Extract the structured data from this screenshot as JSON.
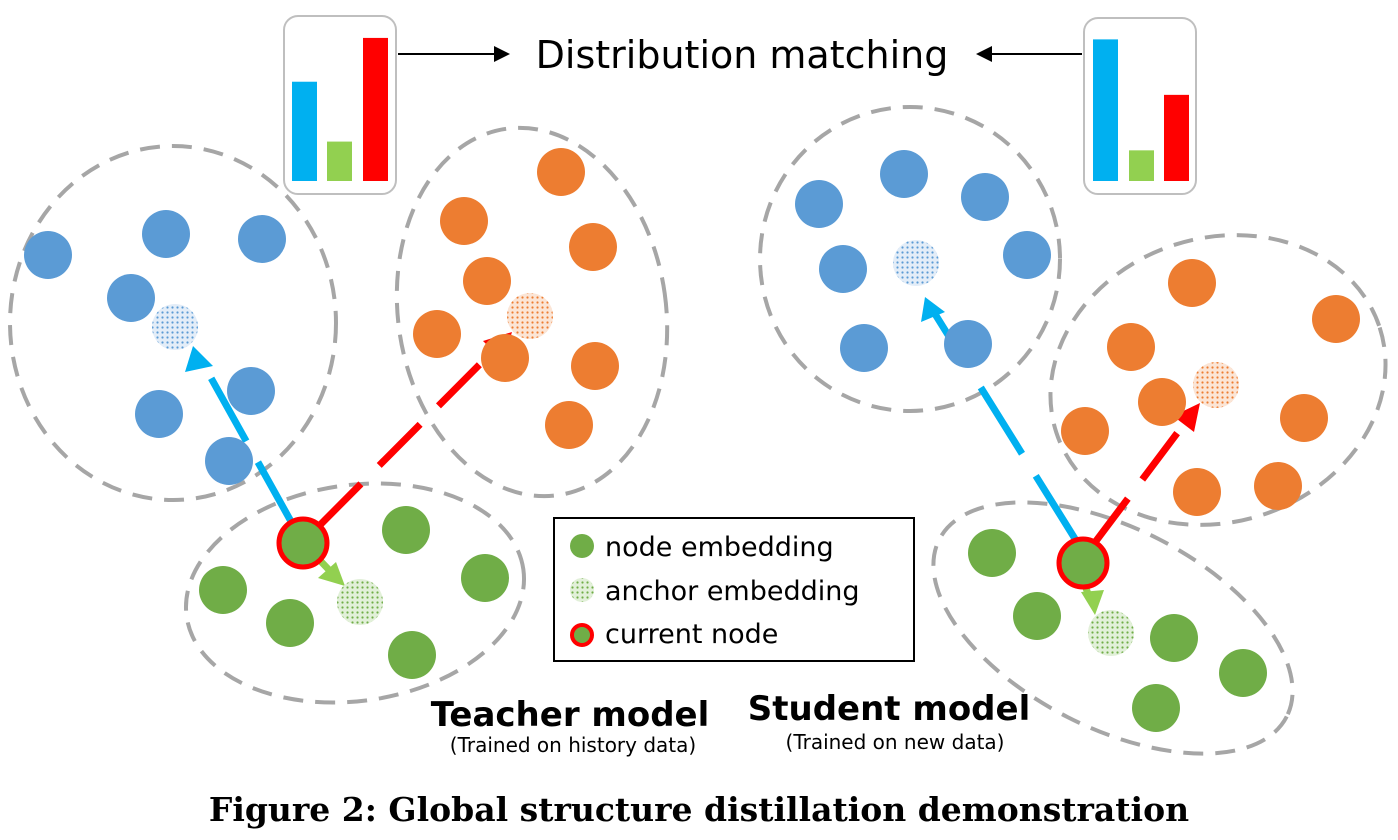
{
  "header": {
    "title": "Distribution matching"
  },
  "legend": {
    "node": "node embedding",
    "anchor": "anchor embedding",
    "current": "current node"
  },
  "teacher": {
    "title": "Teacher model",
    "subtitle": "(Trained on history data)"
  },
  "student": {
    "title": "Student model",
    "subtitle": "(Trained on new data)"
  },
  "caption": "Figure 2: Global structure distillation demonstration",
  "colors": {
    "blue": "#5b9bd5",
    "orange": "#ed7d31",
    "green": "#70ad47",
    "bar_blue": "#00b0f0",
    "bar_green": "#92d050",
    "bar_red": "#ff0000",
    "arrow_blue": "#00b0f0",
    "arrow_red": "#ff0000",
    "arrow_green": "#92d050",
    "dash": "#a6a6a6"
  },
  "bars": {
    "teacher": [
      0.68,
      0.27,
      0.98
    ],
    "student": [
      0.97,
      0.21,
      0.59
    ]
  }
}
